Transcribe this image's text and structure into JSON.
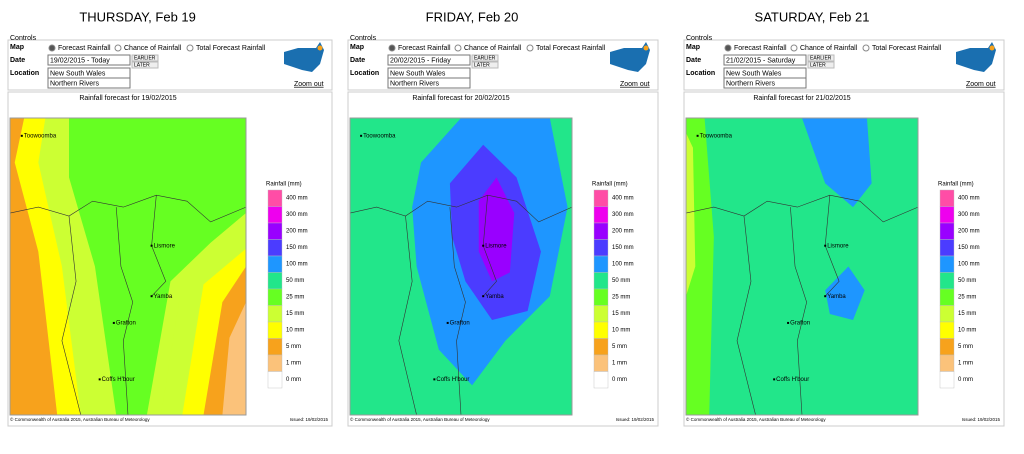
{
  "panels": [
    {
      "heading": "THURSDAY, Feb 19",
      "date": "19/02/2015 - Today",
      "map_title": "Rainfall forecast for 19/02/2015"
    },
    {
      "heading": "FRIDAY, Feb 20",
      "date": "20/02/2015 - Friday",
      "map_title": "Rainfall forecast for 20/02/2015"
    },
    {
      "heading": "SATURDAY, Feb 21",
      "date": "21/02/2015 - Saturday",
      "map_title": "Rainfall forecast for 21/02/2015"
    }
  ],
  "controls": {
    "legend": "Controls",
    "map_label": "Map",
    "date_label": "Date",
    "location_label": "Location",
    "options": [
      "Forecast Rainfall",
      "Chance of Rainfall",
      "Total Forecast Rainfall"
    ],
    "earlier": "EARLIER",
    "later": "LATER",
    "state": "New South Wales",
    "region": "Northern Rivers",
    "zoom": "Zoom out"
  },
  "map": {
    "towns": [
      "Toowoomba",
      "Lismore",
      "Yamba",
      "Grafton",
      "Coffs H'bour"
    ],
    "legend_title": "Rainfall (mm)",
    "legend": [
      {
        "label": "400 mm",
        "color": "#ff4da6"
      },
      {
        "label": "300 mm",
        "color": "#ee00ee"
      },
      {
        "label": "200 mm",
        "color": "#9900ff"
      },
      {
        "label": "150 mm",
        "color": "#4b3cff"
      },
      {
        "label": "100 mm",
        "color": "#1e96ff"
      },
      {
        "label": "50 mm",
        "color": "#22e68a"
      },
      {
        "label": "25 mm",
        "color": "#66ff22"
      },
      {
        "label": "15 mm",
        "color": "#ccff33"
      },
      {
        "label": "10 mm",
        "color": "#ffff00"
      },
      {
        "label": "5 mm",
        "color": "#f7a21c"
      },
      {
        "label": "1 mm",
        "color": "#fbc27a"
      },
      {
        "label": "0 mm",
        "color": "#ffffff"
      }
    ],
    "copyright": "© Commonwealth of Australia 2015, Australian Bureau of Meteorology",
    "issued": "Issued: 19/02/2015"
  }
}
